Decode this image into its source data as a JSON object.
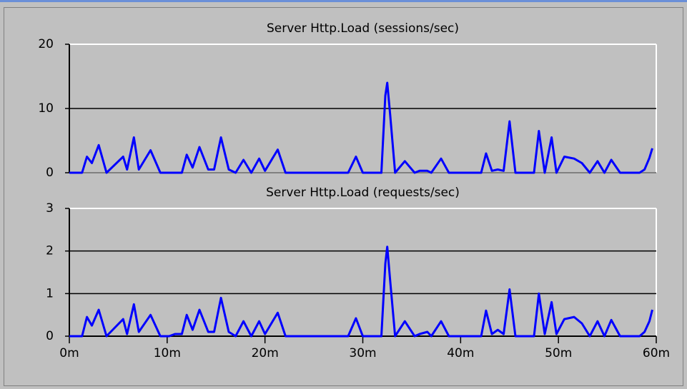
{
  "chart_data": [
    {
      "type": "line",
      "title": "Server Http.Load (sessions/sec)",
      "color": "#0000ff",
      "x": [
        0,
        1.3,
        1.8,
        2.3,
        3.0,
        3.8,
        5.5,
        5.9,
        6.6,
        7.1,
        8.3,
        9.3,
        11.5,
        12.0,
        12.6,
        13.3,
        14.2,
        14.8,
        15.5,
        16.3,
        17.0,
        17.8,
        18.6,
        19.4,
        20.0,
        21.3,
        22.1,
        28.5,
        29.3,
        30.0,
        31.9,
        32.3,
        32.5,
        32.8,
        33.3,
        34.3,
        35.3,
        35.8,
        36.6,
        37.0,
        38.0,
        38.8,
        42.1,
        42.6,
        43.2,
        43.8,
        44.4,
        45.0,
        45.6,
        47.5,
        48.0,
        48.6,
        49.3,
        49.8,
        50.6,
        51.6,
        52.4,
        53.2,
        54.0,
        54.7,
        55.4,
        56.3,
        58.3,
        58.8,
        59.3,
        59.6
      ],
      "values": [
        0,
        0,
        2.5,
        1.5,
        4.3,
        0,
        2.5,
        0.5,
        5.5,
        0.5,
        3.5,
        0,
        0,
        2.8,
        0.8,
        4,
        0.5,
        0.5,
        5.5,
        0.5,
        0,
        2,
        0,
        2.2,
        0.3,
        3.6,
        0,
        0,
        2.5,
        0,
        0,
        12,
        14,
        9,
        0,
        1.8,
        0,
        0.3,
        0.3,
        0,
        2.2,
        0,
        0,
        3,
        0.3,
        0.5,
        0.3,
        8,
        0,
        0,
        6.5,
        0,
        5.5,
        0,
        2.5,
        2.2,
        1.5,
        0,
        1.8,
        0,
        2,
        0,
        0,
        0.5,
        2.3,
        3.8
      ],
      "xlim": [
        0,
        60
      ],
      "ylim": [
        0,
        20
      ],
      "yticks": [
        0,
        10,
        20
      ],
      "grid": true
    },
    {
      "type": "line",
      "title": "Server Http.Load (requests/sec)",
      "color": "#0000ff",
      "x": [
        0,
        1.3,
        1.8,
        2.3,
        3.0,
        3.8,
        5.5,
        5.9,
        6.6,
        7.1,
        8.3,
        9.3,
        10.2,
        10.8,
        11.5,
        12.0,
        12.6,
        13.3,
        14.2,
        14.8,
        15.5,
        16.3,
        17.0,
        17.8,
        18.6,
        19.4,
        20.0,
        21.3,
        22.1,
        28.5,
        29.3,
        30.0,
        31.9,
        32.3,
        32.5,
        32.8,
        33.3,
        34.3,
        35.3,
        35.8,
        36.6,
        37.0,
        38.0,
        38.8,
        42.1,
        42.6,
        43.2,
        43.8,
        44.4,
        45.0,
        45.6,
        47.5,
        48.0,
        48.6,
        49.3,
        49.8,
        50.6,
        51.6,
        52.4,
        53.2,
        54.0,
        54.7,
        55.4,
        56.3,
        58.3,
        58.8,
        59.3,
        59.6
      ],
      "values": [
        0,
        0,
        0.45,
        0.25,
        0.62,
        0,
        0.4,
        0.05,
        0.75,
        0.1,
        0.5,
        0,
        0,
        0.05,
        0.05,
        0.5,
        0.15,
        0.62,
        0.1,
        0.1,
        0.9,
        0.1,
        0,
        0.35,
        0,
        0.35,
        0.05,
        0.55,
        0,
        0,
        0.42,
        0,
        0,
        1.7,
        2.1,
        1.3,
        0,
        0.35,
        0,
        0.05,
        0.1,
        0,
        0.35,
        0,
        0,
        0.6,
        0.05,
        0.15,
        0.05,
        1.1,
        0,
        0,
        1.0,
        0.05,
        0.8,
        0.05,
        0.4,
        0.45,
        0.3,
        0,
        0.35,
        0,
        0.38,
        0,
        0,
        0.1,
        0.35,
        0.62
      ],
      "xlim": [
        0,
        60
      ],
      "ylim": [
        0,
        3
      ],
      "yticks": [
        0,
        1,
        2,
        3
      ],
      "grid": true,
      "xticks": [
        {
          "value": 0,
          "label": "0m"
        },
        {
          "value": 10,
          "label": "10m"
        },
        {
          "value": 20,
          "label": "20m"
        },
        {
          "value": 30,
          "label": "30m"
        },
        {
          "value": 40,
          "label": "40m"
        },
        {
          "value": 50,
          "label": "50m"
        },
        {
          "value": 60,
          "label": "60m"
        }
      ]
    }
  ]
}
